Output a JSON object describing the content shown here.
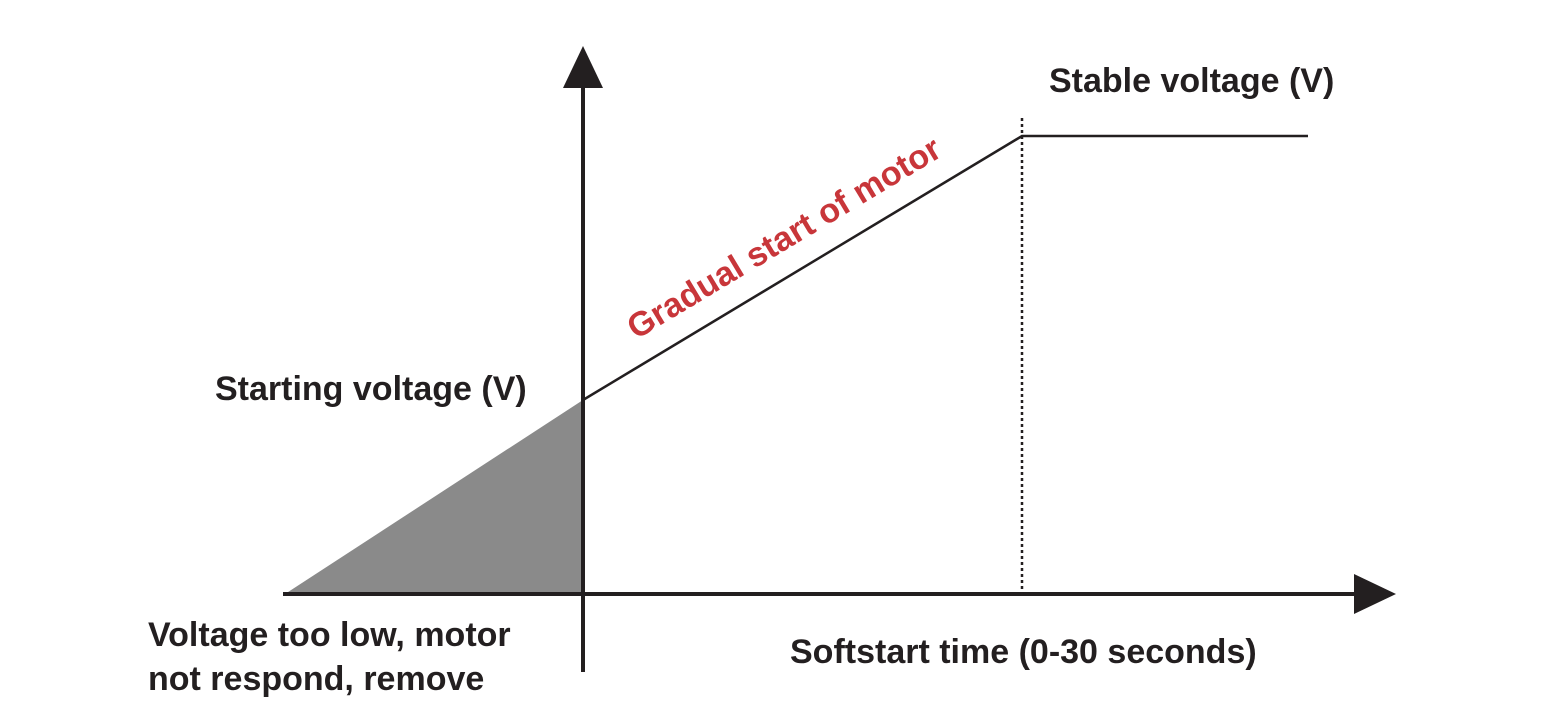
{
  "diagram": {
    "labels": {
      "stable_voltage": "Stable voltage (V)",
      "ramp": "Gradual start of motor",
      "starting_voltage": "Starting voltage (V)",
      "too_low": [
        "Voltage too low, motor",
        "not respond, remove"
      ],
      "x_axis": "Softstart time (0-30 seconds)"
    }
  }
}
